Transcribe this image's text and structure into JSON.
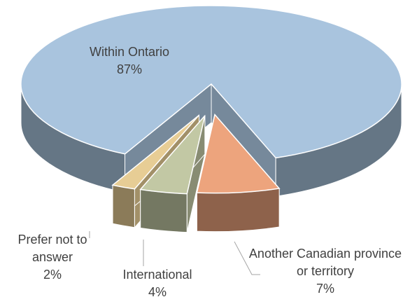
{
  "chart_data": {
    "type": "pie",
    "categories": [
      "Within Ontario",
      "Another Canadian province or territory",
      "International",
      "Prefer not to answer"
    ],
    "values": [
      87,
      7,
      4,
      2
    ],
    "value_labels": [
      "87%",
      "7%",
      "4%",
      "2%"
    ],
    "colors": [
      "#a9c4de",
      "#eda47d",
      "#c2c8a4",
      "#e7cd95"
    ]
  }
}
